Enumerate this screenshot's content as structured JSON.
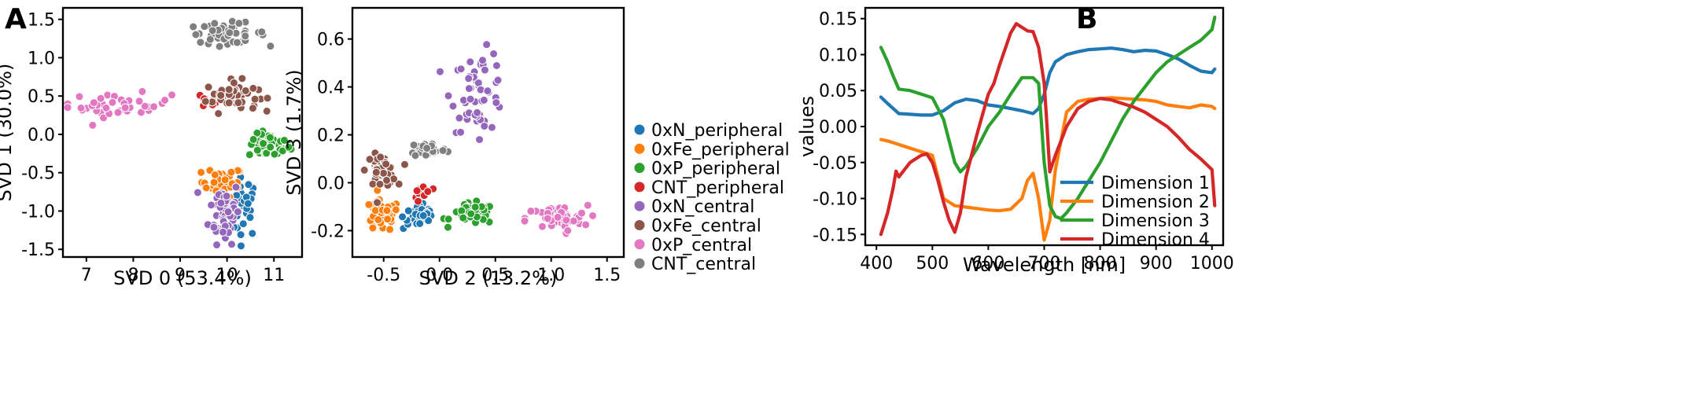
{
  "panels": {
    "a": "A",
    "b": "B"
  },
  "colors": {
    "0xN_peripheral": "#1f77b4",
    "0xFe_peripheral": "#ff7f0e",
    "0xP_peripheral": "#2ca02c",
    "CNT_peripheral": "#d62728",
    "0xN_central": "#9467bd",
    "0xFe_central": "#8c564b",
    "0xP_central": "#e377c2",
    "CNT_central": "#7f7f7f"
  },
  "chart_data": [
    {
      "type": "scatter",
      "title": "",
      "xlabel": "SVD 0 (53.4%)",
      "ylabel": "SVD 1 (30.0%)",
      "xlim": [
        6.5,
        11.6
      ],
      "ylim": [
        -1.6,
        1.65
      ],
      "xticks": [
        "7",
        "8",
        "9",
        "10",
        "11"
      ],
      "yticks": [
        "1.5",
        "1.0",
        "0.5",
        "0.0",
        "-0.5",
        "-1.0",
        "-1.5"
      ],
      "series": [
        {
          "name": "0xN_peripheral",
          "center": [
            10.35,
            -0.95
          ],
          "spread": [
            0.3,
            0.35
          ],
          "count": 35
        },
        {
          "name": "0xFe_peripheral",
          "center": [
            9.9,
            -0.62
          ],
          "spread": [
            0.4,
            0.18
          ],
          "count": 30
        },
        {
          "name": "0xP_peripheral",
          "center": [
            10.9,
            -0.15
          ],
          "spread": [
            0.4,
            0.14
          ],
          "count": 50
        },
        {
          "name": "CNT_peripheral",
          "center": [
            9.65,
            0.45
          ],
          "spread": [
            0.18,
            0.1
          ],
          "count": 15
        },
        {
          "name": "0xN_central",
          "center": [
            9.95,
            -1.0
          ],
          "spread": [
            0.3,
            0.38
          ],
          "count": 55
        },
        {
          "name": "0xFe_central",
          "center": [
            10.1,
            0.5
          ],
          "spread": [
            0.5,
            0.18
          ],
          "count": 50
        },
        {
          "name": "0xP_central",
          "center": [
            7.7,
            0.38
          ],
          "spread": [
            1.0,
            0.14
          ],
          "count": 40
        },
        {
          "name": "CNT_central",
          "center": [
            10.0,
            1.32
          ],
          "spread": [
            0.75,
            0.12
          ],
          "count": 45
        }
      ]
    },
    {
      "type": "scatter",
      "title": "",
      "xlabel": "SVD 2 (13.2%)",
      "ylabel": "SVD 3 (1.7%)",
      "xlim": [
        -0.78,
        1.65
      ],
      "ylim": [
        -0.31,
        0.73
      ],
      "xticks": [
        "-0.5",
        "0.0",
        "0.5",
        "1.0",
        "1.5"
      ],
      "yticks": [
        "0.6",
        "0.4",
        "0.2",
        "0.0",
        "-0.2"
      ],
      "series": [
        {
          "name": "0xN_peripheral",
          "center": [
            -0.17,
            -0.14
          ],
          "spread": [
            0.14,
            0.05
          ],
          "count": 40
        },
        {
          "name": "0xFe_peripheral",
          "center": [
            -0.52,
            -0.14
          ],
          "spread": [
            0.15,
            0.06
          ],
          "count": 45
        },
        {
          "name": "0xP_peripheral",
          "center": [
            0.3,
            -0.13
          ],
          "spread": [
            0.18,
            0.04
          ],
          "count": 45
        },
        {
          "name": "CNT_peripheral",
          "center": [
            -0.15,
            -0.04
          ],
          "spread": [
            0.07,
            0.04
          ],
          "count": 15
        },
        {
          "name": "0xN_central",
          "center": [
            0.35,
            0.38
          ],
          "spread": [
            0.22,
            0.15
          ],
          "count": 55
        },
        {
          "name": "0xFe_central",
          "center": [
            -0.52,
            0.05
          ],
          "spread": [
            0.12,
            0.06
          ],
          "count": 40
        },
        {
          "name": "0xP_central",
          "center": [
            1.05,
            -0.15
          ],
          "spread": [
            0.25,
            0.05
          ],
          "count": 45
        },
        {
          "name": "CNT_central",
          "center": [
            -0.1,
            0.14
          ],
          "spread": [
            0.15,
            0.03
          ],
          "count": 45
        }
      ],
      "legend": {
        "placement": "outside-right",
        "entries": [
          "0xN_peripheral",
          "0xFe_peripheral",
          "0xP_peripheral",
          "CNT_peripheral",
          "0xN_central",
          "0xFe_central",
          "0xP_central",
          "CNT_central"
        ]
      }
    },
    {
      "type": "line",
      "title": "",
      "xlabel": "Wavelength [nm]",
      "ylabel": "values",
      "xlim": [
        380,
        1020
      ],
      "ylim": [
        -0.165,
        0.165
      ],
      "xticks": [
        "400",
        "500",
        "600",
        "700",
        "800",
        "900",
        "1000"
      ],
      "yticks": [
        "0.15",
        "0.10",
        "0.05",
        "0.00",
        "-0.05",
        "-0.10",
        "-0.15"
      ],
      "legend": {
        "placement": "lower-right"
      },
      "series": [
        {
          "name": "Dimension 1",
          "color": "#1f77b4",
          "x": [
            408,
            420,
            430,
            440,
            460,
            480,
            500,
            520,
            540,
            560,
            580,
            600,
            620,
            640,
            660,
            680,
            690,
            700,
            710,
            720,
            740,
            760,
            780,
            800,
            820,
            840,
            860,
            880,
            900,
            920,
            940,
            960,
            980,
            1000,
            1005
          ],
          "y": [
            0.041,
            0.032,
            0.025,
            0.018,
            0.017,
            0.016,
            0.016,
            0.022,
            0.033,
            0.038,
            0.036,
            0.03,
            0.028,
            0.025,
            0.022,
            0.018,
            0.025,
            0.045,
            0.075,
            0.09,
            0.1,
            0.104,
            0.107,
            0.108,
            0.109,
            0.107,
            0.104,
            0.106,
            0.105,
            0.1,
            0.094,
            0.085,
            0.077,
            0.075,
            0.08
          ]
        },
        {
          "name": "Dimension 2",
          "color": "#ff7f0e",
          "x": [
            408,
            420,
            440,
            460,
            480,
            500,
            520,
            530,
            540,
            560,
            580,
            600,
            620,
            640,
            660,
            670,
            680,
            690,
            700,
            710,
            720,
            730,
            740,
            760,
            780,
            800,
            820,
            840,
            860,
            880,
            900,
            920,
            940,
            960,
            980,
            1000,
            1005
          ],
          "y": [
            -0.018,
            -0.02,
            -0.025,
            -0.03,
            -0.035,
            -0.04,
            -0.1,
            -0.105,
            -0.11,
            -0.112,
            -0.114,
            -0.116,
            -0.117,
            -0.115,
            -0.1,
            -0.075,
            -0.065,
            -0.1,
            -0.158,
            -0.13,
            -0.06,
            -0.02,
            0.02,
            0.035,
            0.038,
            0.039,
            0.04,
            0.039,
            0.038,
            0.037,
            0.035,
            0.03,
            0.028,
            0.026,
            0.03,
            0.028,
            0.025
          ]
        },
        {
          "name": "Dimension 3",
          "color": "#2ca02c",
          "x": [
            408,
            420,
            430,
            440,
            460,
            480,
            500,
            520,
            540,
            550,
            560,
            580,
            600,
            620,
            640,
            660,
            680,
            690,
            700,
            710,
            720,
            730,
            740,
            760,
            780,
            800,
            820,
            840,
            860,
            880,
            900,
            920,
            940,
            960,
            980,
            1000,
            1005
          ],
          "y": [
            0.11,
            0.09,
            0.07,
            0.052,
            0.05,
            0.045,
            0.04,
            0.01,
            -0.05,
            -0.063,
            -0.055,
            -0.03,
            0.0,
            0.02,
            0.045,
            0.068,
            0.068,
            0.06,
            -0.05,
            -0.11,
            -0.125,
            -0.128,
            -0.12,
            -0.1,
            -0.075,
            -0.05,
            -0.02,
            0.01,
            0.035,
            0.055,
            0.075,
            0.09,
            0.1,
            0.11,
            0.12,
            0.135,
            0.152
          ]
        },
        {
          "name": "Dimension 4",
          "color": "#d62728",
          "x": [
            408,
            420,
            430,
            435,
            440,
            460,
            480,
            490,
            500,
            510,
            520,
            530,
            540,
            550,
            560,
            580,
            600,
            610,
            620,
            640,
            650,
            660,
            670,
            680,
            690,
            700,
            705,
            710,
            720,
            740,
            760,
            780,
            800,
            820,
            840,
            860,
            880,
            900,
            920,
            940,
            960,
            980,
            1000,
            1005
          ],
          "y": [
            -0.15,
            -0.12,
            -0.085,
            -0.062,
            -0.07,
            -0.05,
            -0.04,
            -0.038,
            -0.05,
            -0.075,
            -0.105,
            -0.13,
            -0.147,
            -0.12,
            -0.07,
            -0.01,
            0.045,
            0.06,
            0.085,
            0.13,
            0.143,
            0.138,
            0.133,
            0.132,
            0.11,
            0.06,
            0.0,
            -0.063,
            -0.04,
            0.0,
            0.025,
            0.035,
            0.039,
            0.037,
            0.032,
            0.027,
            0.02,
            0.01,
            0.0,
            -0.015,
            -0.032,
            -0.045,
            -0.06,
            -0.11
          ]
        }
      ]
    }
  ]
}
